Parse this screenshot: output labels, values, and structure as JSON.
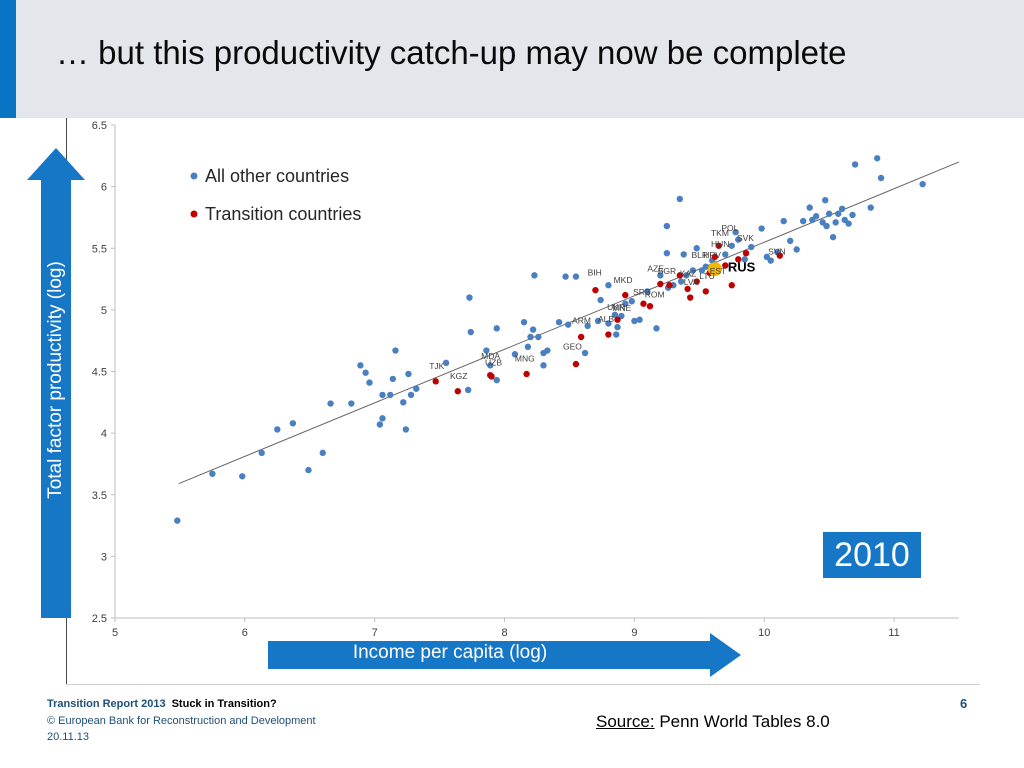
{
  "slide": {
    "title": "… but this productivity catch-up may now be complete",
    "y_arrow_label": "Total factor productivity   (log)",
    "x_arrow_label": "Income per capita (log)",
    "year_badge": "2010",
    "source_prefix": "Source:",
    "source_text": " Penn World Tables 8.0",
    "page_number": "6"
  },
  "footer": {
    "report": "Transition Report 2013",
    "subtitle": "Stuck in Transition?",
    "copyright": "© European Bank for Reconstruction and Development",
    "date": "20.11.13"
  },
  "colors": {
    "accent": "#0a74c4",
    "arrow": "#1677c6",
    "other_countries": "#4a7fc0",
    "transition_countries": "#c00000",
    "russia": "#f5b800",
    "trend_line": "#666666"
  },
  "chart_data": {
    "type": "scatter",
    "xlim": [
      5,
      11.5
    ],
    "ylim": [
      2.5,
      6.5
    ],
    "x_ticks": [
      5,
      6,
      7,
      8,
      9,
      10,
      11
    ],
    "y_ticks": [
      2.5,
      3,
      3.5,
      4,
      4.5,
      5,
      5.5,
      6,
      6.5
    ],
    "grid": false,
    "legend_position": "top-left",
    "trend_line": [
      [
        5.49,
        3.59
      ],
      [
        11.5,
        6.2
      ]
    ],
    "series": [
      {
        "name": "All other countries",
        "color": "#4a7fc0",
        "points": [
          [
            5.48,
            3.29
          ],
          [
            5.75,
            3.67
          ],
          [
            5.98,
            3.65
          ],
          [
            6.13,
            3.84
          ],
          [
            6.25,
            4.03
          ],
          [
            6.37,
            4.08
          ],
          [
            6.49,
            3.7
          ],
          [
            6.6,
            3.84
          ],
          [
            6.66,
            4.24
          ],
          [
            6.82,
            4.24
          ],
          [
            6.89,
            4.55
          ],
          [
            6.93,
            4.49
          ],
          [
            6.96,
            4.41
          ],
          [
            7.04,
            4.07
          ],
          [
            7.06,
            4.31
          ],
          [
            7.06,
            4.12
          ],
          [
            7.12,
            4.31
          ],
          [
            7.14,
            4.44
          ],
          [
            7.16,
            4.67
          ],
          [
            7.22,
            4.25
          ],
          [
            7.24,
            4.03
          ],
          [
            7.26,
            4.48
          ],
          [
            7.28,
            4.31
          ],
          [
            7.32,
            4.36
          ],
          [
            7.55,
            4.57
          ],
          [
            7.72,
            4.35
          ],
          [
            7.74,
            4.82
          ],
          [
            7.73,
            5.1
          ],
          [
            7.86,
            4.67
          ],
          [
            7.89,
            4.55
          ],
          [
            7.94,
            4.43
          ],
          [
            7.94,
            4.85
          ],
          [
            8.08,
            4.64
          ],
          [
            8.15,
            4.9
          ],
          [
            8.18,
            4.7
          ],
          [
            8.2,
            4.78
          ],
          [
            8.22,
            4.84
          ],
          [
            8.23,
            5.28
          ],
          [
            8.26,
            4.78
          ],
          [
            8.3,
            4.55
          ],
          [
            8.3,
            4.65
          ],
          [
            8.33,
            4.67
          ],
          [
            8.42,
            4.9
          ],
          [
            8.47,
            5.27
          ],
          [
            8.49,
            4.88
          ],
          [
            8.55,
            5.27
          ],
          [
            8.62,
            4.65
          ],
          [
            8.64,
            4.87
          ],
          [
            8.72,
            4.91
          ],
          [
            8.74,
            5.08
          ],
          [
            8.8,
            4.89
          ],
          [
            8.85,
            4.96
          ],
          [
            8.86,
            4.8
          ],
          [
            8.87,
            4.86
          ],
          [
            8.9,
            4.95
          ],
          [
            8.93,
            5.05
          ],
          [
            8.98,
            5.07
          ],
          [
            9.0,
            4.91
          ],
          [
            9.04,
            4.92
          ],
          [
            9.1,
            5.15
          ],
          [
            9.17,
            4.85
          ],
          [
            9.2,
            5.28
          ],
          [
            9.25,
            5.68
          ],
          [
            9.25,
            5.46
          ],
          [
            9.3,
            5.2
          ],
          [
            9.35,
            5.9
          ],
          [
            9.38,
            5.45
          ],
          [
            9.4,
            5.28
          ],
          [
            9.45,
            5.32
          ],
          [
            9.48,
            5.5
          ],
          [
            9.55,
            5.35
          ],
          [
            9.6,
            5.4
          ],
          [
            9.65,
            5.33
          ],
          [
            9.7,
            5.45
          ],
          [
            9.75,
            5.52
          ],
          [
            9.8,
            5.57
          ],
          [
            9.85,
            5.41
          ],
          [
            9.9,
            5.51
          ],
          [
            9.98,
            5.66
          ],
          [
            10.02,
            5.43
          ],
          [
            10.05,
            5.4
          ],
          [
            10.15,
            5.72
          ],
          [
            10.2,
            5.56
          ],
          [
            10.25,
            5.49
          ],
          [
            10.3,
            5.72
          ],
          [
            10.35,
            5.83
          ],
          [
            10.37,
            5.73
          ],
          [
            10.4,
            5.76
          ],
          [
            10.45,
            5.71
          ],
          [
            10.47,
            5.89
          ],
          [
            10.48,
            5.68
          ],
          [
            10.5,
            5.78
          ],
          [
            10.53,
            5.59
          ],
          [
            10.55,
            5.71
          ],
          [
            10.57,
            5.78
          ],
          [
            10.6,
            5.82
          ],
          [
            10.62,
            5.73
          ],
          [
            10.65,
            5.7
          ],
          [
            10.68,
            5.77
          ],
          [
            10.7,
            6.18
          ],
          [
            10.82,
            5.83
          ],
          [
            10.87,
            6.23
          ],
          [
            10.9,
            6.07
          ],
          [
            11.22,
            6.02
          ],
          [
            10.1,
            5.47
          ],
          [
            9.78,
            5.63
          ],
          [
            8.8,
            5.2
          ],
          [
            9.52,
            5.32
          ],
          [
            9.36,
            5.23
          ],
          [
            9.26,
            5.18
          ]
        ]
      },
      {
        "name": "Transition countries",
        "color": "#c00000",
        "points": [
          [
            7.47,
            4.42
          ],
          [
            7.64,
            4.34
          ],
          [
            7.89,
            4.47
          ],
          [
            7.9,
            4.46
          ],
          [
            8.17,
            4.48
          ],
          [
            8.55,
            4.56
          ],
          [
            8.59,
            4.78
          ],
          [
            8.7,
            5.16
          ],
          [
            8.8,
            4.8
          ],
          [
            8.87,
            4.92
          ],
          [
            8.93,
            5.12
          ],
          [
            9.07,
            5.05
          ],
          [
            9.12,
            5.03
          ],
          [
            9.2,
            5.21
          ],
          [
            9.27,
            5.2
          ],
          [
            9.35,
            5.28
          ],
          [
            9.41,
            5.17
          ],
          [
            9.43,
            5.1
          ],
          [
            9.48,
            5.23
          ],
          [
            9.55,
            5.15
          ],
          [
            9.58,
            5.3
          ],
          [
            9.62,
            5.43
          ],
          [
            9.65,
            5.52
          ],
          [
            9.7,
            5.36
          ],
          [
            9.75,
            5.2
          ],
          [
            9.8,
            5.41
          ],
          [
            9.86,
            5.46
          ],
          [
            10.12,
            5.44
          ]
        ]
      },
      {
        "name": "RUS",
        "color": "#f5b800",
        "points": [
          [
            9.62,
            5.33
          ]
        ]
      }
    ],
    "annotations": [
      {
        "text": "TJK",
        "x": 7.42,
        "y": 4.52
      },
      {
        "text": "KGZ",
        "x": 7.58,
        "y": 4.44
      },
      {
        "text": "MDA",
        "x": 7.82,
        "y": 4.6
      },
      {
        "text": "UZB",
        "x": 7.85,
        "y": 4.55
      },
      {
        "text": "MNG",
        "x": 8.08,
        "y": 4.58
      },
      {
        "text": "GEO",
        "x": 8.45,
        "y": 4.68
      },
      {
        "text": "ARM",
        "x": 8.52,
        "y": 4.89
      },
      {
        "text": "ALB",
        "x": 8.72,
        "y": 4.9
      },
      {
        "text": "UKR",
        "x": 8.79,
        "y": 5.0
      },
      {
        "text": "MNE",
        "x": 8.83,
        "y": 4.99
      },
      {
        "text": "MKD",
        "x": 8.84,
        "y": 5.22
      },
      {
        "text": "BIH",
        "x": 8.64,
        "y": 5.28
      },
      {
        "text": "SRB",
        "x": 8.99,
        "y": 5.12
      },
      {
        "text": "ROM",
        "x": 9.08,
        "y": 5.1
      },
      {
        "text": "AZE",
        "x": 9.1,
        "y": 5.31
      },
      {
        "text": "BGR",
        "x": 9.18,
        "y": 5.29
      },
      {
        "text": "KAZ",
        "x": 9.35,
        "y": 5.27
      },
      {
        "text": "LVA",
        "x": 9.38,
        "y": 5.2
      },
      {
        "text": "LTU",
        "x": 9.5,
        "y": 5.25
      },
      {
        "text": "EST",
        "x": 9.58,
        "y": 5.29
      },
      {
        "text": "BLR",
        "x": 9.44,
        "y": 5.42
      },
      {
        "text": "HRV",
        "x": 9.53,
        "y": 5.42
      },
      {
        "text": "HUN",
        "x": 9.59,
        "y": 5.51
      },
      {
        "text": "TKM",
        "x": 9.59,
        "y": 5.6
      },
      {
        "text": "POL",
        "x": 9.67,
        "y": 5.64
      },
      {
        "text": "SVK",
        "x": 9.79,
        "y": 5.56
      },
      {
        "text": "SVN",
        "x": 10.03,
        "y": 5.45
      },
      {
        "text": "RUS",
        "x": 9.72,
        "y": 5.31
      }
    ]
  }
}
